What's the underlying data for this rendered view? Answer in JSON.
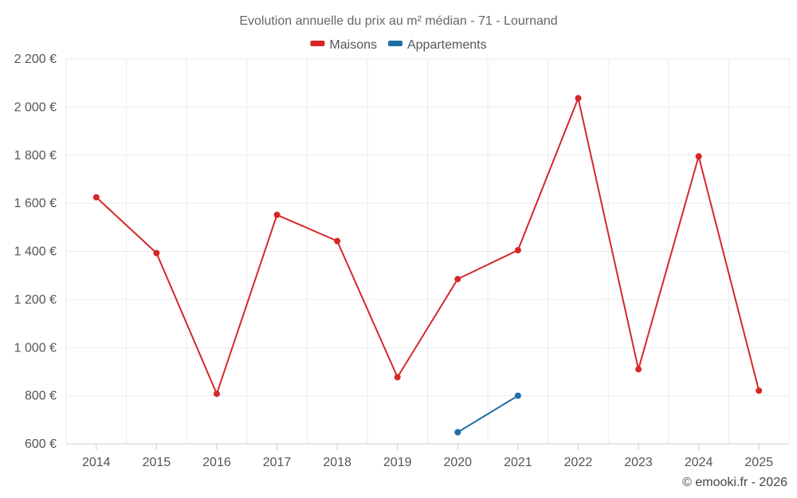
{
  "chart_data": {
    "type": "line",
    "title": "Evolution annuelle du prix au m² médian - 71 - Lournand",
    "xlabel": "",
    "ylabel": "",
    "categories": [
      "2014",
      "2015",
      "2016",
      "2017",
      "2018",
      "2019",
      "2020",
      "2021",
      "2022",
      "2023",
      "2024",
      "2025"
    ],
    "ylim": [
      600,
      2200
    ],
    "yticks": [
      600,
      800,
      1000,
      1200,
      1400,
      1600,
      1800,
      2000,
      2200
    ],
    "ytick_labels": [
      "600 €",
      "800 €",
      "1 000 €",
      "1 200 €",
      "1 400 €",
      "1 600 €",
      "1 800 €",
      "2 000 €",
      "2 200 €"
    ],
    "grid": true,
    "legend_position": "top-center",
    "series": [
      {
        "name": "Maisons",
        "color": "#d62728",
        "values": [
          1625,
          1393,
          808,
          1552,
          1443,
          877,
          1285,
          1405,
          2037,
          910,
          1795,
          821
        ]
      },
      {
        "name": "Appartements",
        "color": "#1f6ea4",
        "values": [
          null,
          null,
          null,
          null,
          null,
          null,
          648,
          800,
          null,
          null,
          null,
          null
        ]
      }
    ],
    "credit": "© emooki.fr - 2026"
  }
}
